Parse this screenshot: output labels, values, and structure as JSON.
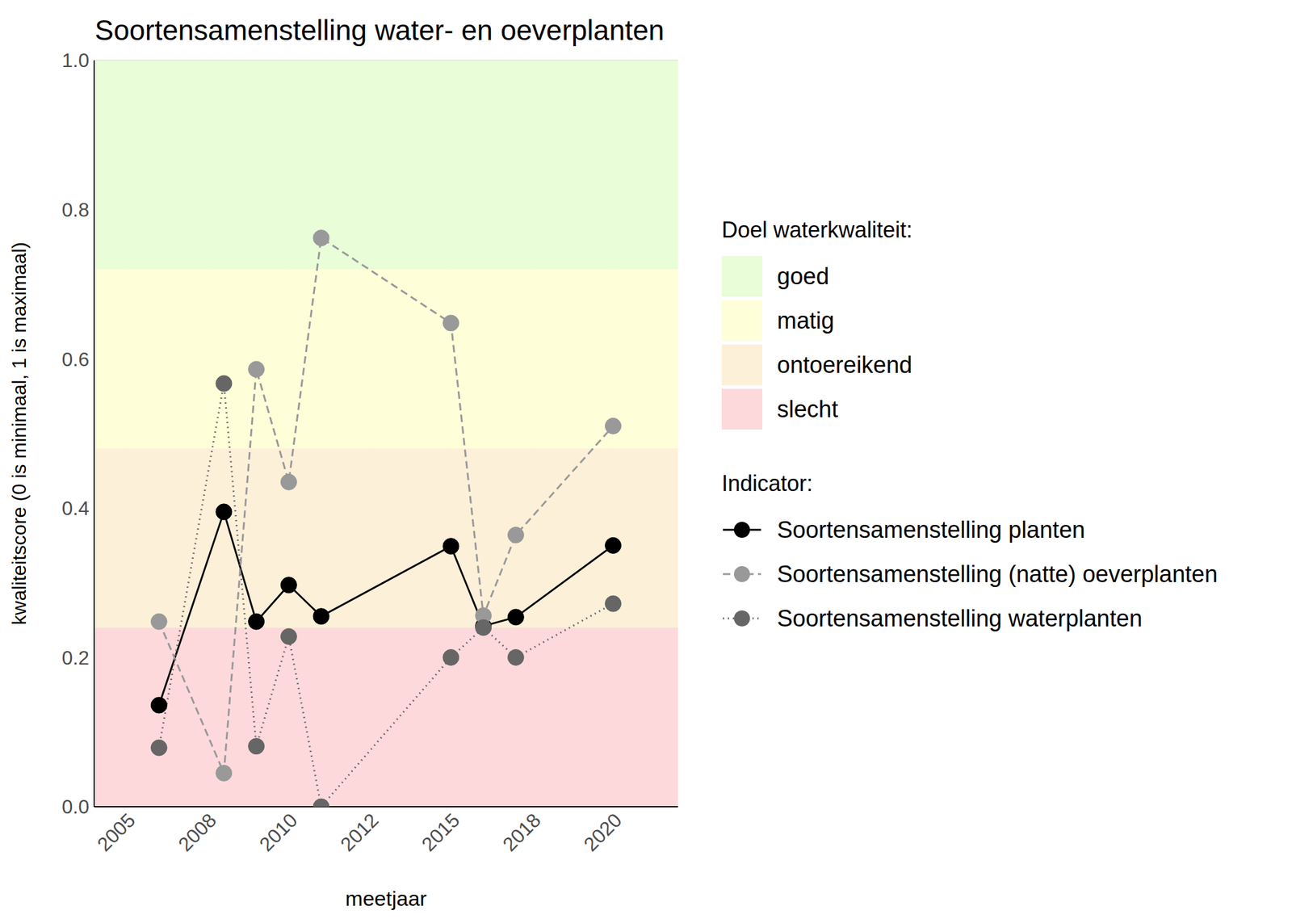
{
  "chart_data": {
    "type": "line",
    "title": "Soortensamenstelling water- en oeverplanten",
    "x_label": "meetjaar",
    "y_label": "kwaliteitscore (0 is minimaal, 1 is maximaal)",
    "x": [
      2006,
      2008,
      2009,
      2010,
      2011,
      2015,
      2016,
      2017,
      2020
    ],
    "series": [
      {
        "name": "Soortensamenstelling planten",
        "color": "#000000",
        "line_style": "solid",
        "marker": "circle",
        "values": [
          0.136,
          0.395,
          0.248,
          0.297,
          0.255,
          0.349,
          0.242,
          0.254,
          0.35
        ]
      },
      {
        "name": "Soortensamenstelling (natte) oeverplanten",
        "color": "#999999",
        "line_style": "dashed",
        "marker": "circle",
        "values": [
          0.248,
          0.045,
          0.586,
          0.435,
          0.762,
          0.648,
          0.256,
          0.364,
          0.51
        ]
      },
      {
        "name": "Soortensamenstelling waterplanten",
        "color": "#666666",
        "line_style": "dotted",
        "marker": "circle",
        "values": [
          0.079,
          0.567,
          0.081,
          0.228,
          0,
          0.2,
          0.24,
          0.2,
          0.272
        ]
      }
    ],
    "xlim": [
      2004,
      2022
    ],
    "xticks": [
      2005,
      {
        "value": 2007.5,
        "label": "2008"
      },
      2010,
      {
        "value": 2012.5,
        "label": "2012"
      },
      2015,
      {
        "value": 2017.5,
        "label": "2018"
      },
      2020
    ],
    "ylim": [
      0,
      1
    ],
    "yticks": [
      {
        "value": 0,
        "label": "0.0"
      },
      0.2,
      0.4,
      0.6,
      0.8,
      {
        "value": 1,
        "label": "1.0"
      }
    ],
    "grid": true,
    "legend": "right",
    "band_legend_title": "Doel waterkwaliteit:",
    "series_legend_title": "Indicator:",
    "bands": [
      {
        "name": "goed",
        "from": 0.72,
        "to": 1,
        "color": "#e8fdd8"
      },
      {
        "name": "matig",
        "from": 0.48,
        "to": 0.72,
        "color": "#fefed9"
      },
      {
        "name": "ontoereikend",
        "from": 0.24,
        "to": 0.48,
        "color": "#fdf0d9"
      },
      {
        "name": "slecht",
        "from": 0,
        "to": 0.24,
        "color": "#fdd9dc"
      }
    ]
  }
}
